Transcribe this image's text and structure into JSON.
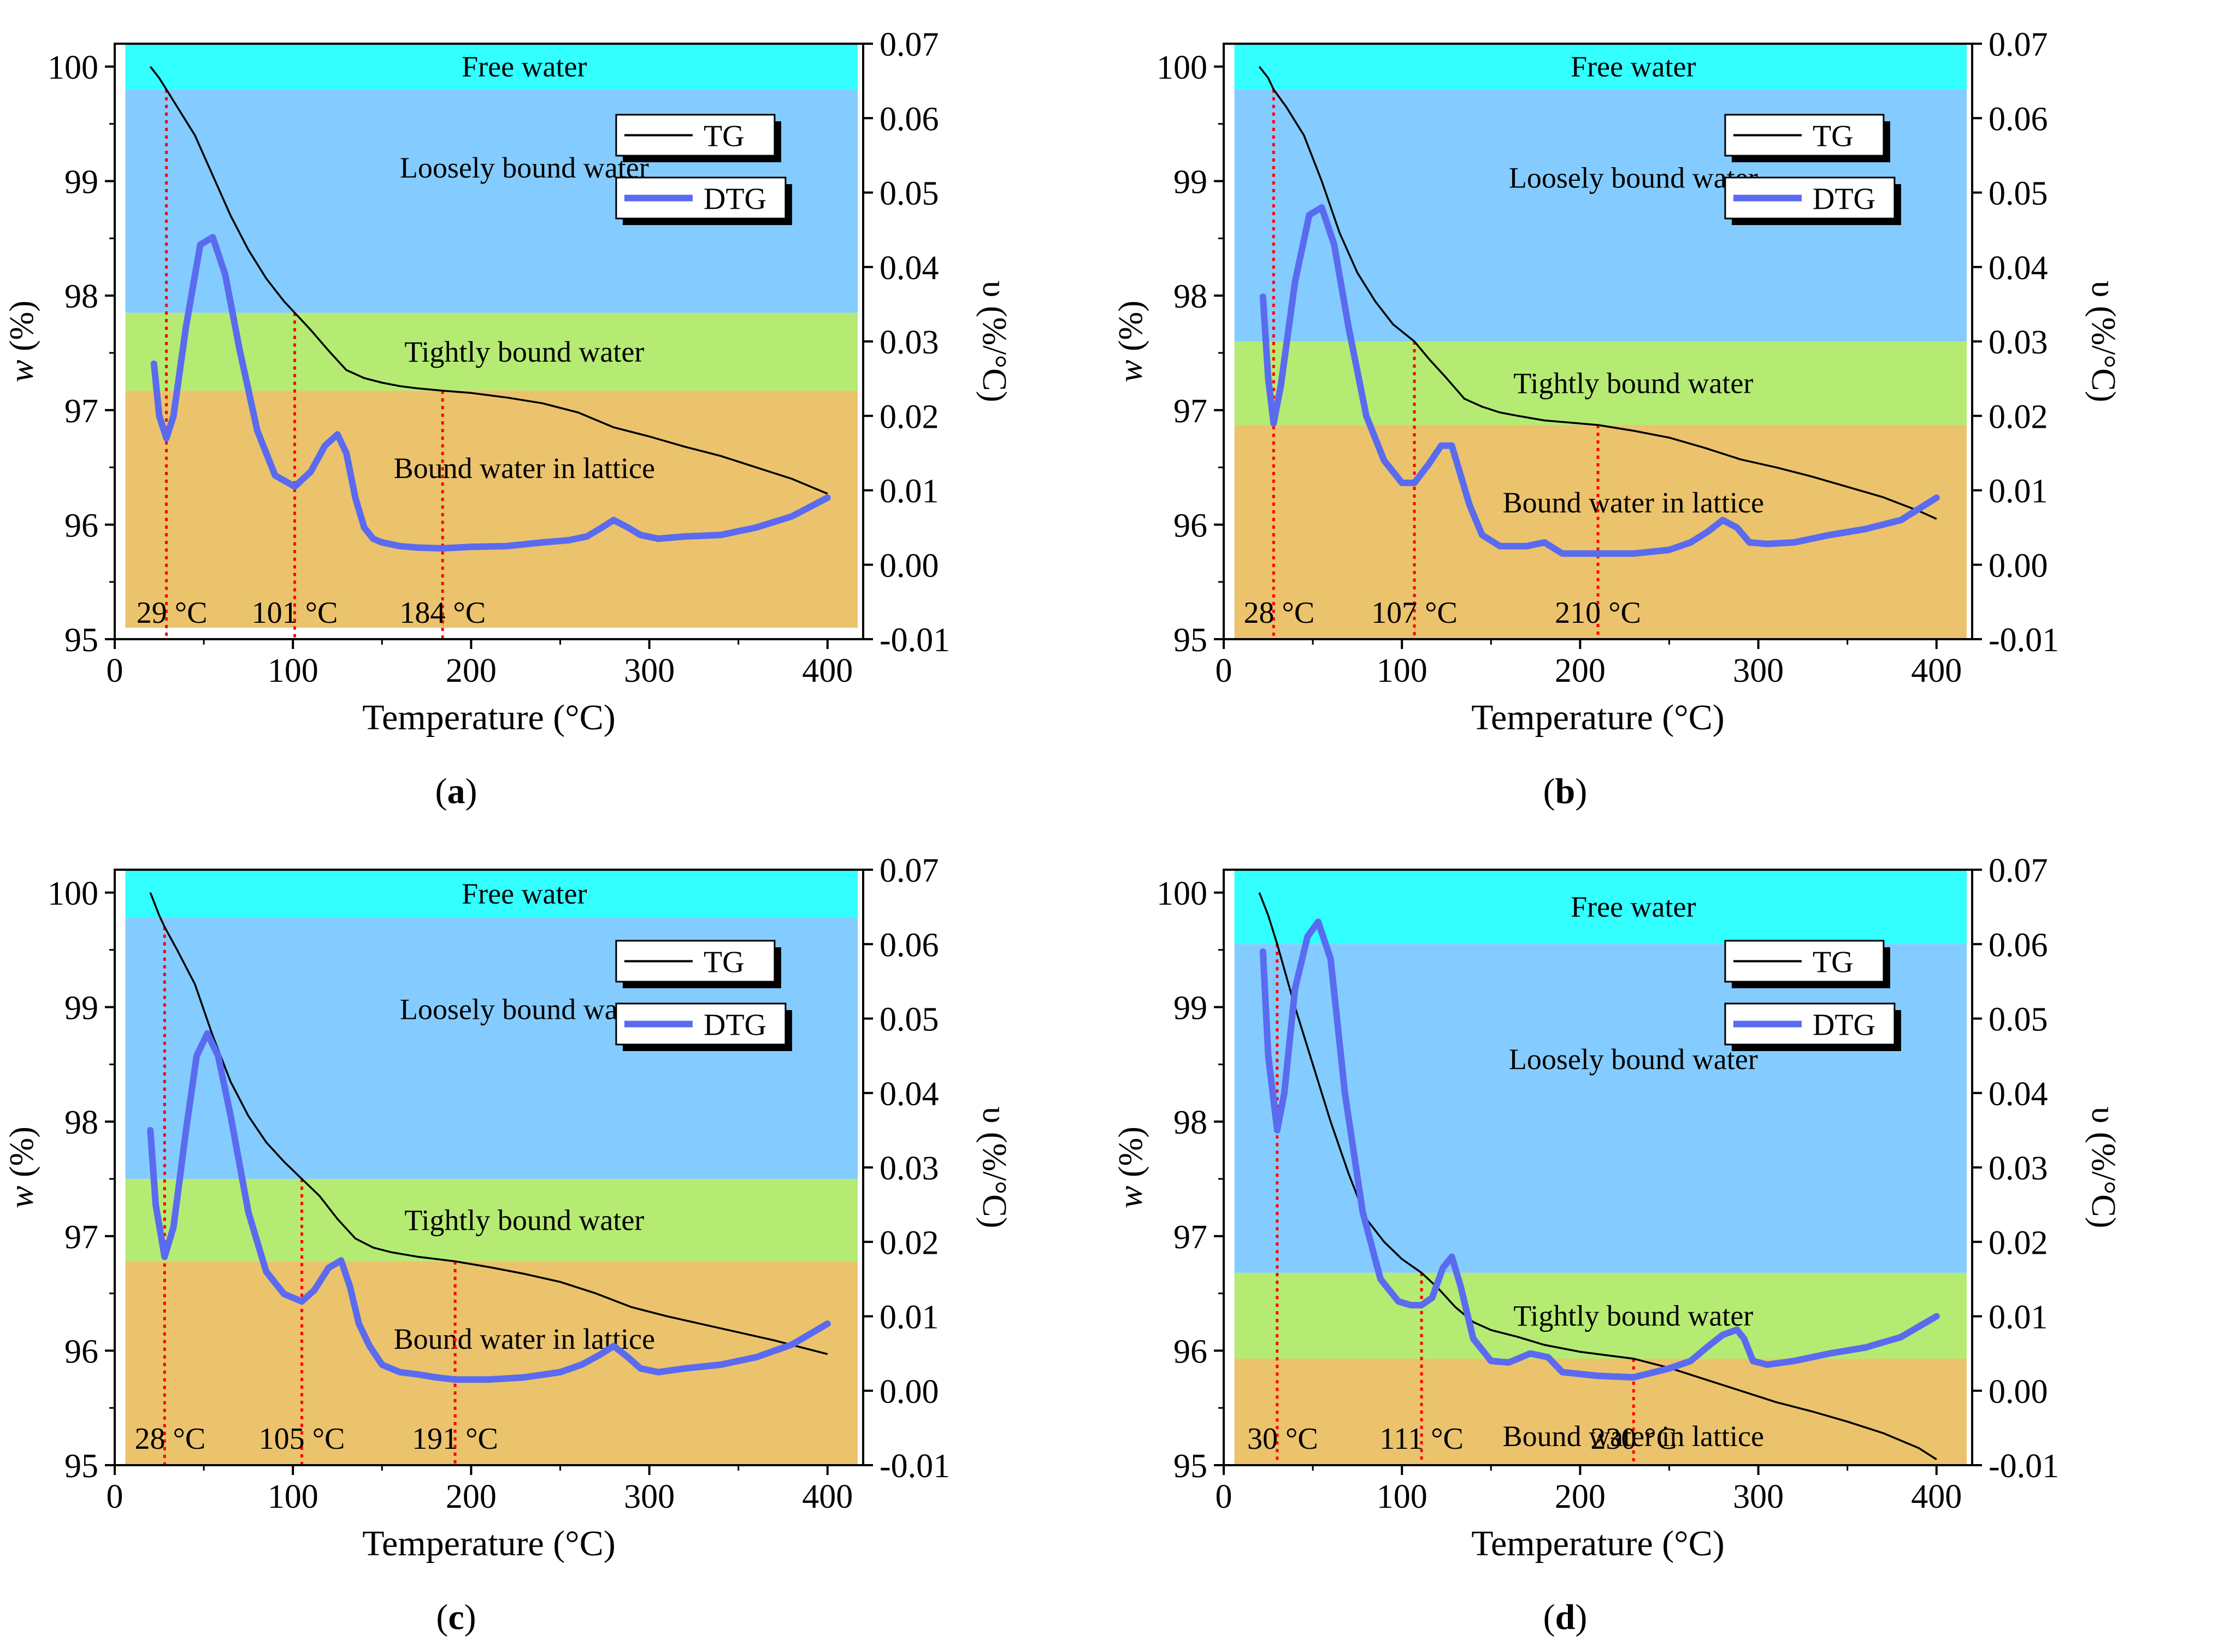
{
  "figure": {
    "xlabel": "Temperature (°C)",
    "ylabel_left_italic": "w",
    "ylabel_left_rest": " (%)",
    "ylabel_right": "υ (%/°C)"
  },
  "colors": {
    "free_water": "#33ffff",
    "loosely_bound_water": "#84ccff",
    "tightly_bound_water": "#b5eb73",
    "bound_water_in_lattice": "#ebc36d",
    "tg_line": "#000000",
    "dtg_line": "#5a6bf0",
    "marker_line": "#ff0000"
  },
  "chart_data": [
    {
      "type": "line",
      "panel_label": "a",
      "xlim": [
        0,
        420
      ],
      "xticks": [
        0,
        100,
        200,
        300,
        400
      ],
      "ylim_left": [
        95,
        100.2
      ],
      "yticks_left": [
        95,
        96,
        97,
        98,
        99,
        100
      ],
      "ylim_right": [
        -0.01,
        0.07
      ],
      "yticks_right": [
        -0.01,
        0.0,
        0.01,
        0.02,
        0.03,
        0.04,
        0.05,
        0.06,
        0.07
      ],
      "regions": [
        {
          "label": "Free water",
          "from": 100.2,
          "to": 99.8,
          "color": "free_water"
        },
        {
          "label": "Loosely bound water",
          "from": 99.8,
          "to": 97.85,
          "color": "loosely_bound_water"
        },
        {
          "label": "Tightly bound water",
          "from": 97.85,
          "to": 97.17,
          "color": "tightly_bound_water"
        },
        {
          "label": "Bound water in lattice",
          "from": 97.17,
          "to": 95.1,
          "color": "bound_water_in_lattice"
        }
      ],
      "markers": [
        {
          "x": 29,
          "label": "29 °C",
          "tg": 99.8
        },
        {
          "x": 101,
          "label": "101 °C",
          "tg": 97.85
        },
        {
          "x": 184,
          "label": "184 °C",
          "tg": 97.17
        }
      ],
      "series": [
        {
          "name": "TG",
          "axis": "left",
          "x": [
            20,
            25,
            29,
            35,
            45,
            55,
            65,
            75,
            85,
            95,
            101,
            110,
            120,
            130,
            140,
            150,
            160,
            170,
            184,
            200,
            220,
            240,
            260,
            280,
            300,
            320,
            340,
            360,
            380,
            400
          ],
          "y": [
            100.0,
            99.9,
            99.8,
            99.65,
            99.4,
            99.05,
            98.7,
            98.4,
            98.15,
            97.95,
            97.85,
            97.7,
            97.52,
            97.35,
            97.28,
            97.24,
            97.21,
            97.19,
            97.17,
            97.15,
            97.11,
            97.06,
            96.98,
            96.85,
            96.77,
            96.68,
            96.6,
            96.5,
            96.4,
            96.27
          ]
        },
        {
          "name": "DTG",
          "axis": "right",
          "x": [
            22,
            25,
            29,
            33,
            40,
            48,
            55,
            62,
            70,
            80,
            90,
            101,
            110,
            118,
            125,
            130,
            135,
            140,
            145,
            150,
            160,
            170,
            184,
            200,
            220,
            240,
            255,
            265,
            272,
            280,
            288,
            295,
            305,
            320,
            340,
            360,
            380,
            400
          ],
          "y": [
            0.027,
            0.02,
            0.017,
            0.02,
            0.032,
            0.043,
            0.044,
            0.039,
            0.029,
            0.018,
            0.012,
            0.0105,
            0.0125,
            0.016,
            0.0175,
            0.015,
            0.009,
            0.005,
            0.0035,
            0.003,
            0.0025,
            0.0023,
            0.0022,
            0.0024,
            0.0025,
            0.003,
            0.0033,
            0.0038,
            0.0048,
            0.006,
            0.005,
            0.004,
            0.0035,
            0.0038,
            0.004,
            0.005,
            0.0065,
            0.009
          ]
        }
      ]
    },
    {
      "type": "line",
      "panel_label": "b",
      "xlim": [
        0,
        420
      ],
      "xticks": [
        0,
        100,
        200,
        300,
        400
      ],
      "ylim_left": [
        95,
        100.2
      ],
      "yticks_left": [
        95,
        96,
        97,
        98,
        99,
        100
      ],
      "ylim_right": [
        -0.01,
        0.07
      ],
      "yticks_right": [
        -0.01,
        0.0,
        0.01,
        0.02,
        0.03,
        0.04,
        0.05,
        0.06,
        0.07
      ],
      "regions": [
        {
          "label": "Free water",
          "from": 100.2,
          "to": 99.8,
          "color": "free_water"
        },
        {
          "label": "Loosely bound water",
          "from": 99.8,
          "to": 97.6,
          "color": "loosely_bound_water"
        },
        {
          "label": "Tightly bound water",
          "from": 97.6,
          "to": 96.87,
          "color": "tightly_bound_water"
        },
        {
          "label": "Bound water in lattice",
          "from": 96.87,
          "to": 95.0,
          "color": "bound_water_in_lattice"
        }
      ],
      "markers": [
        {
          "x": 28,
          "label": "28 °C",
          "tg": 99.8
        },
        {
          "x": 107,
          "label": "107 °C",
          "tg": 97.6
        },
        {
          "x": 210,
          "label": "210 °C",
          "tg": 96.87
        }
      ],
      "series": [
        {
          "name": "TG",
          "axis": "left",
          "x": [
            20,
            25,
            28,
            35,
            45,
            55,
            65,
            75,
            85,
            95,
            107,
            115,
            125,
            135,
            145,
            155,
            165,
            180,
            195,
            210,
            230,
            250,
            270,
            290,
            310,
            330,
            350,
            370,
            390,
            400
          ],
          "y": [
            100.0,
            99.9,
            99.8,
            99.65,
            99.4,
            99.0,
            98.55,
            98.2,
            97.95,
            97.75,
            97.6,
            97.45,
            97.28,
            97.1,
            97.03,
            96.98,
            96.95,
            96.91,
            96.89,
            96.87,
            96.82,
            96.76,
            96.67,
            96.57,
            96.5,
            96.42,
            96.33,
            96.24,
            96.12,
            96.05
          ]
        },
        {
          "name": "DTG",
          "axis": "right",
          "x": [
            22,
            25,
            28,
            32,
            40,
            48,
            55,
            62,
            70,
            80,
            90,
            100,
            107,
            115,
            122,
            128,
            133,
            138,
            145,
            155,
            170,
            180,
            190,
            210,
            230,
            250,
            262,
            272,
            280,
            288,
            295,
            305,
            320,
            340,
            360,
            380,
            400
          ],
          "y": [
            0.036,
            0.025,
            0.019,
            0.024,
            0.038,
            0.047,
            0.048,
            0.043,
            0.032,
            0.02,
            0.014,
            0.011,
            0.011,
            0.0135,
            0.016,
            0.016,
            0.012,
            0.008,
            0.004,
            0.0025,
            0.0025,
            0.003,
            0.0015,
            0.0015,
            0.0015,
            0.002,
            0.003,
            0.0045,
            0.006,
            0.005,
            0.003,
            0.0028,
            0.003,
            0.004,
            0.0048,
            0.006,
            0.009
          ]
        }
      ]
    },
    {
      "type": "line",
      "panel_label": "c",
      "xlim": [
        0,
        420
      ],
      "xticks": [
        0,
        100,
        200,
        300,
        400
      ],
      "ylim_left": [
        95,
        100.2
      ],
      "yticks_left": [
        95,
        96,
        97,
        98,
        99,
        100
      ],
      "ylim_right": [
        -0.01,
        0.07
      ],
      "yticks_right": [
        -0.01,
        0.0,
        0.01,
        0.02,
        0.03,
        0.04,
        0.05,
        0.06,
        0.07
      ],
      "regions": [
        {
          "label": "Free water",
          "from": 100.2,
          "to": 99.78,
          "color": "free_water"
        },
        {
          "label": "Loosely bound water",
          "from": 99.78,
          "to": 97.5,
          "color": "loosely_bound_water"
        },
        {
          "label": "Tightly bound water",
          "from": 97.5,
          "to": 96.78,
          "color": "tightly_bound_water"
        },
        {
          "label": "Bound water in lattice",
          "from": 96.78,
          "to": 95.0,
          "color": "bound_water_in_lattice"
        }
      ],
      "markers": [
        {
          "x": 28,
          "label": "28 °C",
          "tg": 99.7
        },
        {
          "x": 105,
          "label": "105 °C",
          "tg": 97.5
        },
        {
          "x": 191,
          "label": "191 °C",
          "tg": 96.78
        }
      ],
      "series": [
        {
          "name": "TG",
          "axis": "left",
          "x": [
            20,
            25,
            28,
            35,
            45,
            55,
            65,
            75,
            85,
            95,
            105,
            115,
            125,
            135,
            145,
            155,
            170,
            191,
            210,
            230,
            250,
            270,
            290,
            310,
            330,
            350,
            370,
            390,
            400
          ],
          "y": [
            100.0,
            99.8,
            99.7,
            99.5,
            99.2,
            98.75,
            98.35,
            98.05,
            97.82,
            97.65,
            97.5,
            97.35,
            97.15,
            96.98,
            96.9,
            96.86,
            96.82,
            96.78,
            96.73,
            96.67,
            96.6,
            96.5,
            96.38,
            96.3,
            96.23,
            96.16,
            96.09,
            96.01,
            95.97
          ]
        },
        {
          "name": "DTG",
          "axis": "right",
          "x": [
            20,
            23,
            28,
            33,
            40,
            46,
            52,
            58,
            65,
            75,
            85,
            95,
            105,
            112,
            120,
            127,
            132,
            137,
            143,
            150,
            160,
            170,
            180,
            191,
            210,
            230,
            250,
            262,
            272,
            280,
            288,
            295,
            305,
            320,
            340,
            360,
            380,
            400
          ],
          "y": [
            0.035,
            0.025,
            0.018,
            0.022,
            0.035,
            0.045,
            0.048,
            0.045,
            0.037,
            0.024,
            0.016,
            0.013,
            0.012,
            0.0135,
            0.0165,
            0.0175,
            0.014,
            0.009,
            0.006,
            0.0035,
            0.0025,
            0.0022,
            0.0018,
            0.0015,
            0.0015,
            0.0018,
            0.0025,
            0.0035,
            0.0048,
            0.006,
            0.0045,
            0.003,
            0.0025,
            0.003,
            0.0035,
            0.0045,
            0.0062,
            0.009
          ]
        }
      ]
    },
    {
      "type": "line",
      "panel_label": "d",
      "xlim": [
        0,
        420
      ],
      "xticks": [
        0,
        100,
        200,
        300,
        400
      ],
      "ylim_left": [
        95,
        100.2
      ],
      "yticks_left": [
        95,
        96,
        97,
        98,
        99,
        100
      ],
      "ylim_right": [
        -0.01,
        0.07
      ],
      "yticks_right": [
        -0.01,
        0.0,
        0.01,
        0.02,
        0.03,
        0.04,
        0.05,
        0.06,
        0.07
      ],
      "regions": [
        {
          "label": "Free water",
          "from": 100.2,
          "to": 99.55,
          "color": "free_water"
        },
        {
          "label": "Loosely bound water",
          "from": 99.55,
          "to": 96.68,
          "color": "loosely_bound_water"
        },
        {
          "label": "Tightly bound water",
          "from": 96.68,
          "to": 95.93,
          "color": "tightly_bound_water"
        },
        {
          "label": "Bound water in lattice",
          "from": 95.93,
          "to": 95.0,
          "color": "bound_water_in_lattice"
        }
      ],
      "markers": [
        {
          "x": 30,
          "label": "30 °C",
          "tg": 99.55
        },
        {
          "x": 111,
          "label": "111 °C",
          "tg": 96.68
        },
        {
          "x": 230,
          "label": "230 °C",
          "tg": 95.93
        }
      ],
      "series": [
        {
          "name": "TG",
          "axis": "left",
          "x": [
            20,
            25,
            30,
            40,
            50,
            60,
            70,
            80,
            90,
            100,
            111,
            120,
            130,
            140,
            150,
            165,
            180,
            200,
            230,
            250,
            270,
            290,
            310,
            330,
            350,
            370,
            390,
            400
          ],
          "y": [
            100.0,
            99.8,
            99.55,
            99.0,
            98.5,
            98.0,
            97.55,
            97.15,
            96.95,
            96.8,
            96.68,
            96.55,
            96.38,
            96.25,
            96.18,
            96.12,
            96.05,
            95.99,
            95.93,
            95.85,
            95.75,
            95.65,
            95.55,
            95.47,
            95.38,
            95.28,
            95.15,
            95.05
          ]
        },
        {
          "name": "DTG",
          "axis": "right",
          "x": [
            22,
            25,
            30,
            34,
            40,
            47,
            53,
            60,
            68,
            78,
            88,
            98,
            105,
            111,
            117,
            123,
            128,
            133,
            140,
            150,
            160,
            172,
            182,
            190,
            210,
            230,
            250,
            262,
            272,
            280,
            288,
            292,
            297,
            305,
            320,
            340,
            360,
            380,
            400
          ],
          "y": [
            0.059,
            0.045,
            0.035,
            0.04,
            0.054,
            0.061,
            0.063,
            0.058,
            0.04,
            0.024,
            0.015,
            0.012,
            0.0115,
            0.0115,
            0.0125,
            0.0165,
            0.018,
            0.014,
            0.007,
            0.004,
            0.0038,
            0.005,
            0.0045,
            0.0025,
            0.002,
            0.0018,
            0.003,
            0.004,
            0.006,
            0.0075,
            0.0082,
            0.007,
            0.004,
            0.0035,
            0.004,
            0.005,
            0.0058,
            0.0072,
            0.01
          ]
        }
      ]
    }
  ]
}
